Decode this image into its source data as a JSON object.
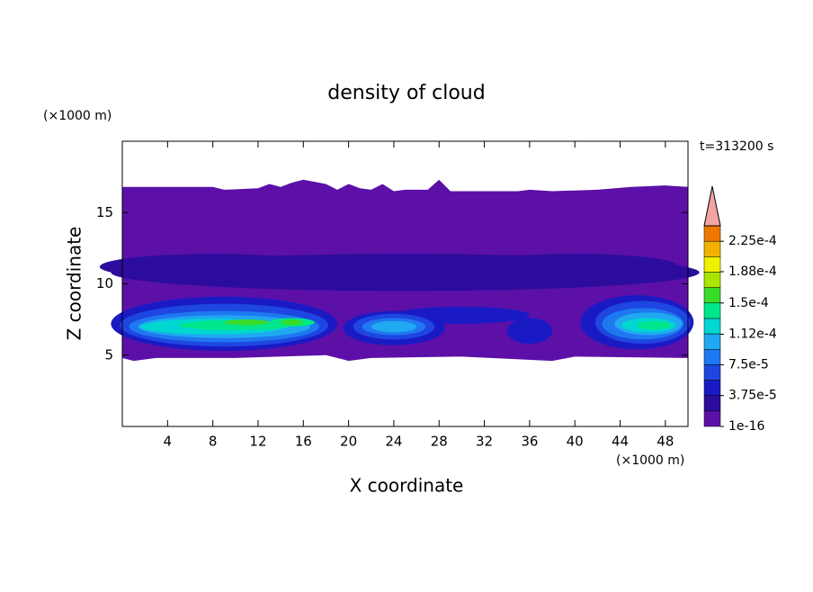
{
  "chart_data": {
    "type": "contour",
    "title": "density of cloud",
    "xlabel": "X coordinate",
    "ylabel": "Z coordinate",
    "xunit": "(×1000 m)",
    "yunit": "(×1000 m)",
    "annotation": "t=313200 s",
    "xlim": [
      0,
      50
    ],
    "ylim": [
      0,
      20
    ],
    "xticks": [
      4,
      8,
      12,
      16,
      20,
      24,
      28,
      32,
      36,
      40,
      44,
      48
    ],
    "yticks": [
      5,
      10,
      15
    ],
    "colorbar": {
      "levels": [
        1e-16,
        1.875e-05,
        3.75e-05,
        5.625e-05,
        7.5e-05,
        9.375e-05,
        0.000112,
        0.00013125,
        0.00015,
        0.00016875,
        0.000188,
        0.00020625,
        0.000225
      ],
      "colors": [
        "#5c10a8",
        "#2c0c9c",
        "#1a1ac4",
        "#1e46e0",
        "#1e78f0",
        "#20a8f0",
        "#00d6d2",
        "#00e68c",
        "#38dc28",
        "#a8e600",
        "#f0f000",
        "#f0b400",
        "#f07800"
      ],
      "ticks": [
        {
          "value": 1e-16,
          "label": "1e-16"
        },
        {
          "value": 3.75e-05,
          "label": "3.75e-5"
        },
        {
          "value": 7.5e-05,
          "label": "7.5e-5"
        },
        {
          "value": 0.000112,
          "label": "1.12e-4"
        },
        {
          "value": 0.00015,
          "label": "1.5e-4"
        },
        {
          "value": 0.000188,
          "label": "1.88e-4"
        },
        {
          "value": 0.000225,
          "label": "2.25e-4"
        }
      ],
      "extend_color": "#f4a4a4"
    }
  }
}
